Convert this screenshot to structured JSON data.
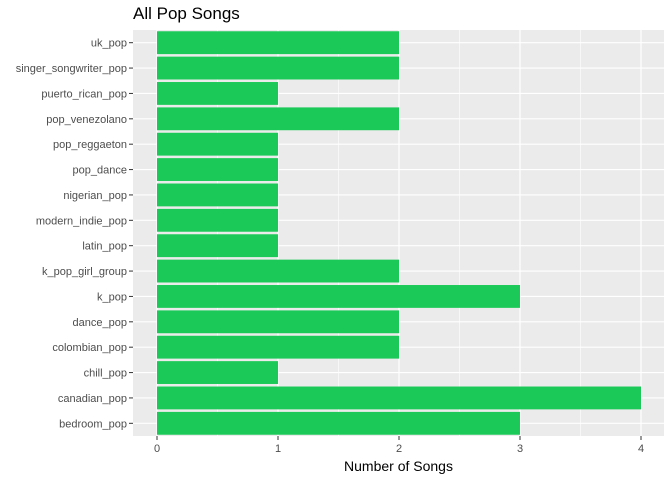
{
  "chart_data": {
    "type": "bar",
    "orientation": "horizontal",
    "title": "All Pop Songs",
    "xlabel": "Number of Songs",
    "ylabel": "",
    "xlim": [
      0,
      4.1
    ],
    "xticks": [
      0,
      1,
      2,
      3,
      4
    ],
    "grid": true,
    "bar_color": "#1BC958",
    "panel_color": "#EBEBEB",
    "grid_color": "#FFFFFF",
    "categories": [
      "uk_pop",
      "singer_songwriter_pop",
      "puerto_rican_pop",
      "pop_venezolano",
      "pop_reggaeton",
      "pop_dance",
      "nigerian_pop",
      "modern_indie_pop",
      "latin_pop",
      "k_pop_girl_group",
      "k_pop",
      "dance_pop",
      "colombian_pop",
      "chill_pop",
      "canadian_pop",
      "bedroom_pop"
    ],
    "values": [
      2,
      2,
      1,
      2,
      1,
      1,
      1,
      1,
      1,
      2,
      3,
      2,
      2,
      1,
      4,
      3
    ]
  }
}
